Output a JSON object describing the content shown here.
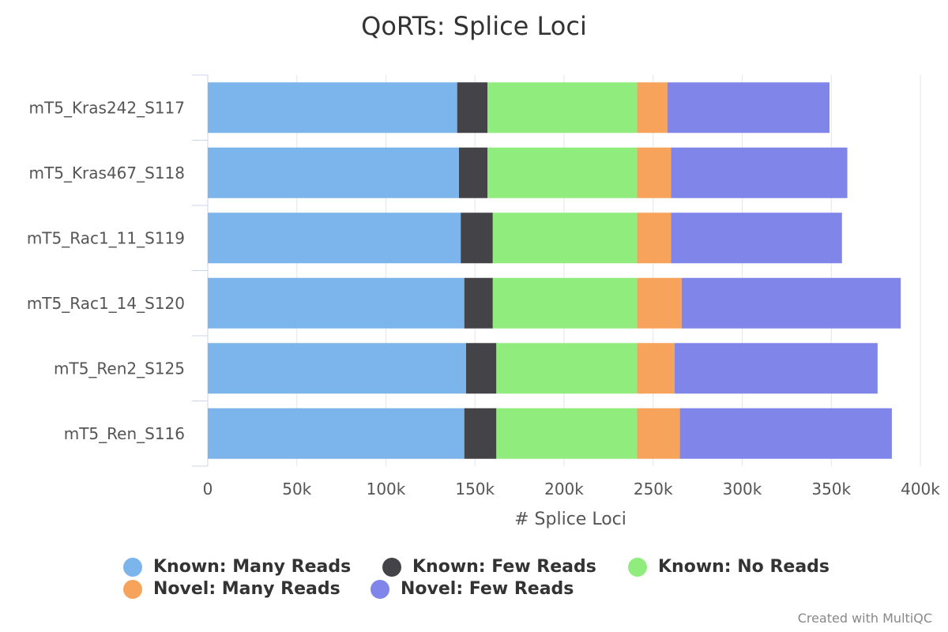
{
  "chart_data": {
    "type": "bar",
    "orientation": "horizontal",
    "stacked": true,
    "title": "QoRTs: Splice Loci",
    "xlabel": "# Splice Loci",
    "xlim": [
      0,
      400000
    ],
    "x_ticks": [
      "0",
      "50k",
      "100k",
      "150k",
      "200k",
      "250k",
      "300k",
      "350k",
      "400k"
    ],
    "grid": true,
    "legend_position": "bottom",
    "categories": [
      "mT5_Kras242_S117",
      "mT5_Kras467_S118",
      "mT5_Rac1_11_S119",
      "mT5_Rac1_14_S120",
      "mT5_Ren2_S125",
      "mT5_Ren_S116"
    ],
    "series": [
      {
        "name": "Known: Many Reads",
        "color": "#7cb5ec",
        "values": [
          140000,
          141000,
          142000,
          144000,
          145000,
          144000
        ]
      },
      {
        "name": "Known: Few Reads",
        "color": "#434348",
        "values": [
          17000,
          16000,
          18000,
          16000,
          17000,
          18000
        ]
      },
      {
        "name": "Known: No Reads",
        "color": "#90ed7d",
        "values": [
          84000,
          84000,
          81000,
          81000,
          79000,
          79000
        ]
      },
      {
        "name": "Novel: Many Reads",
        "color": "#f7a35c",
        "values": [
          17000,
          19000,
          19000,
          25000,
          21000,
          24000
        ]
      },
      {
        "name": "Novel: Few Reads",
        "color": "#8085e9",
        "values": [
          91000,
          99000,
          96000,
          123000,
          114000,
          119000
        ]
      }
    ]
  },
  "credits": "Created with MultiQC"
}
